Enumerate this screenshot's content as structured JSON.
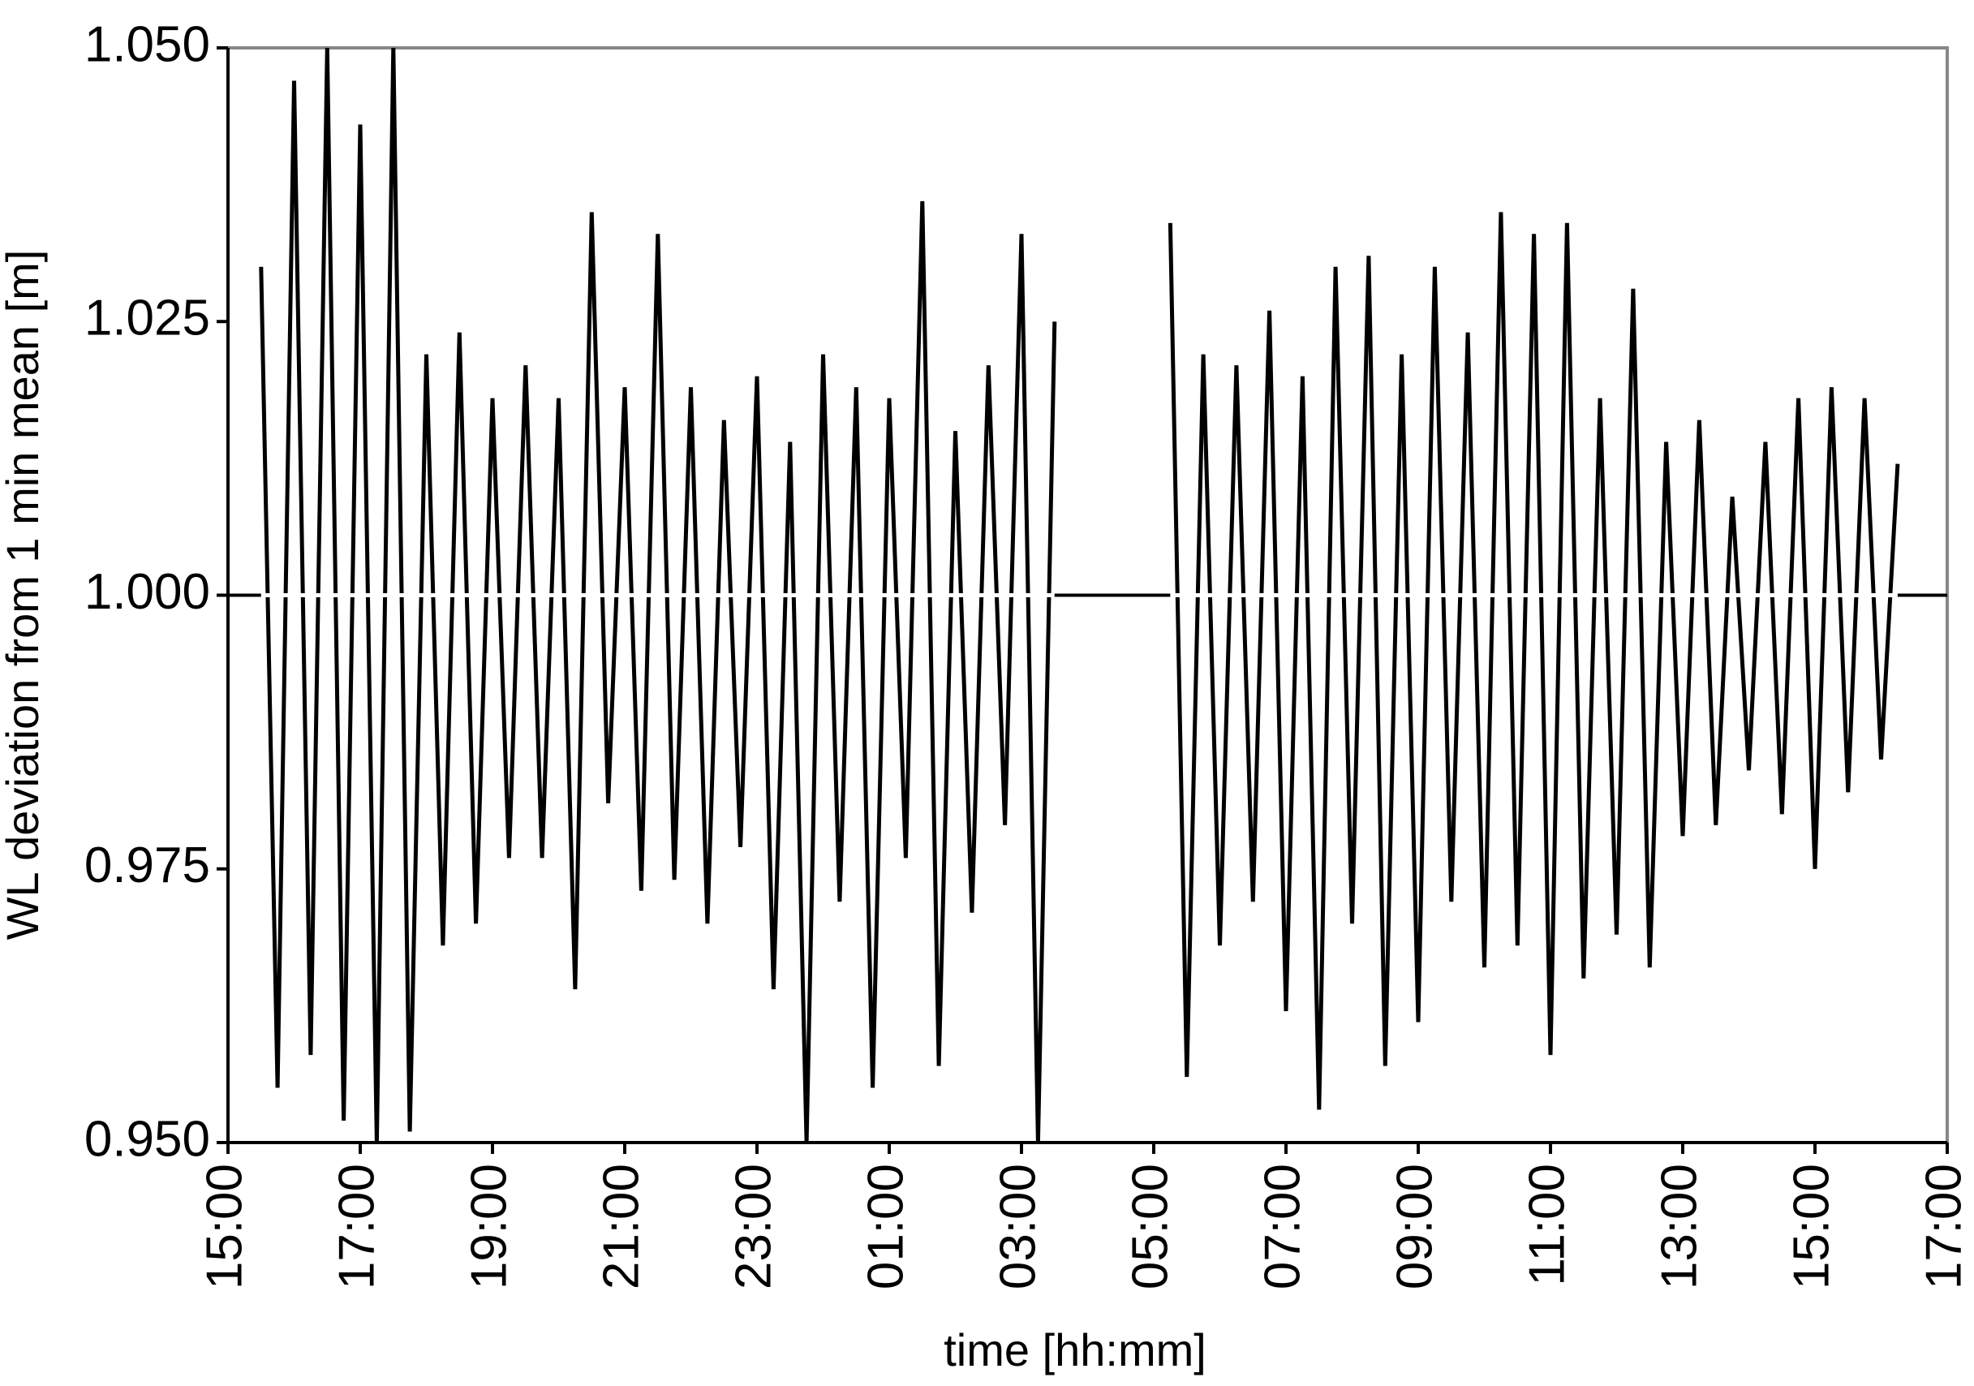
{
  "chart_data": {
    "type": "line",
    "x_label": "time [hh:mm]",
    "y_label": "WL deviation from 1 min mean [m]",
    "x": [
      0.5,
      0.75,
      1.0,
      1.25,
      1.5,
      1.75,
      2.0,
      2.25,
      2.5,
      2.75,
      3.0,
      3.25,
      3.5,
      3.75,
      4.0,
      4.25,
      4.5,
      4.75,
      5.0,
      5.25,
      5.5,
      5.75,
      6.0,
      6.25,
      6.5,
      6.75,
      7.0,
      7.25,
      7.5,
      7.75,
      8.0,
      8.25,
      8.5,
      8.75,
      9.0,
      9.25,
      9.5,
      9.75,
      10.0,
      10.25,
      10.5,
      10.75,
      11.0,
      11.25,
      11.5,
      11.75,
      12.0,
      12.25,
      12.5,
      13.0,
      14.25,
      14.5,
      14.75,
      15.0,
      15.25,
      15.5,
      15.75,
      16.0,
      16.25,
      16.5,
      16.75,
      17.0,
      17.25,
      17.5,
      17.75,
      18.0,
      18.25,
      18.5,
      18.75,
      19.0,
      19.25,
      19.5,
      19.75,
      20.0,
      20.25,
      20.5,
      20.75,
      21.0,
      21.25,
      21.5,
      21.75,
      22.0,
      22.25,
      22.5,
      22.75,
      23.0,
      23.25,
      23.5,
      23.75,
      24.0,
      24.25,
      24.5,
      24.75,
      25.0,
      25.25
    ],
    "values": [
      1.03,
      0.955,
      1.047,
      0.958,
      1.05,
      0.952,
      1.043,
      0.95,
      1.05,
      0.951,
      1.022,
      0.968,
      1.024,
      0.97,
      1.018,
      0.976,
      1.021,
      0.976,
      1.018,
      0.964,
      1.035,
      0.981,
      1.019,
      0.973,
      1.033,
      0.974,
      1.019,
      0.97,
      1.016,
      0.977,
      1.02,
      0.964,
      1.014,
      0.95,
      1.022,
      0.972,
      1.019,
      0.955,
      1.018,
      0.976,
      1.036,
      0.957,
      1.015,
      0.971,
      1.021,
      0.979,
      1.033,
      0.95,
      1.025,
      null,
      1.034,
      0.956,
      1.022,
      0.968,
      1.021,
      0.972,
      1.026,
      0.962,
      1.02,
      0.953,
      1.03,
      0.97,
      1.031,
      0.957,
      1.022,
      0.961,
      1.03,
      0.972,
      1.024,
      0.966,
      1.035,
      0.968,
      1.033,
      0.958,
      1.034,
      0.965,
      1.018,
      0.969,
      1.028,
      0.966,
      1.014,
      0.978,
      1.016,
      0.979,
      1.009,
      0.984,
      1.014,
      0.98,
      1.018,
      0.975,
      1.019,
      0.982,
      1.018,
      0.985,
      1.012
    ],
    "color": "#000000",
    "mean_line": {
      "value": 1.0,
      "color": "#ffffff"
    },
    "xlim": [
      0,
      26
    ],
    "xticks": [
      {
        "value": 0,
        "label": "15:00"
      },
      {
        "value": 2,
        "label": "17:00"
      },
      {
        "value": 4,
        "label": "19:00"
      },
      {
        "value": 6,
        "label": "21:00"
      },
      {
        "value": 8,
        "label": "23:00"
      },
      {
        "value": 10,
        "label": "01:00"
      },
      {
        "value": 12,
        "label": "03:00"
      },
      {
        "value": 14,
        "label": "05:00"
      },
      {
        "value": 16,
        "label": "07:00"
      },
      {
        "value": 18,
        "label": "09:00"
      },
      {
        "value": 20,
        "label": "11:00"
      },
      {
        "value": 22,
        "label": "13:00"
      },
      {
        "value": 24,
        "label": "15:00"
      },
      {
        "value": 26,
        "label": "17:00"
      }
    ],
    "ylim": [
      0.95,
      1.05
    ],
    "yticks": [
      {
        "value": 0.95,
        "label": "0.950"
      },
      {
        "value": 0.975,
        "label": "0.975"
      },
      {
        "value": 1.0,
        "label": "1.000"
      },
      {
        "value": 1.025,
        "label": "1.025"
      },
      {
        "value": 1.05,
        "label": "1.050"
      }
    ],
    "grid": false
  }
}
